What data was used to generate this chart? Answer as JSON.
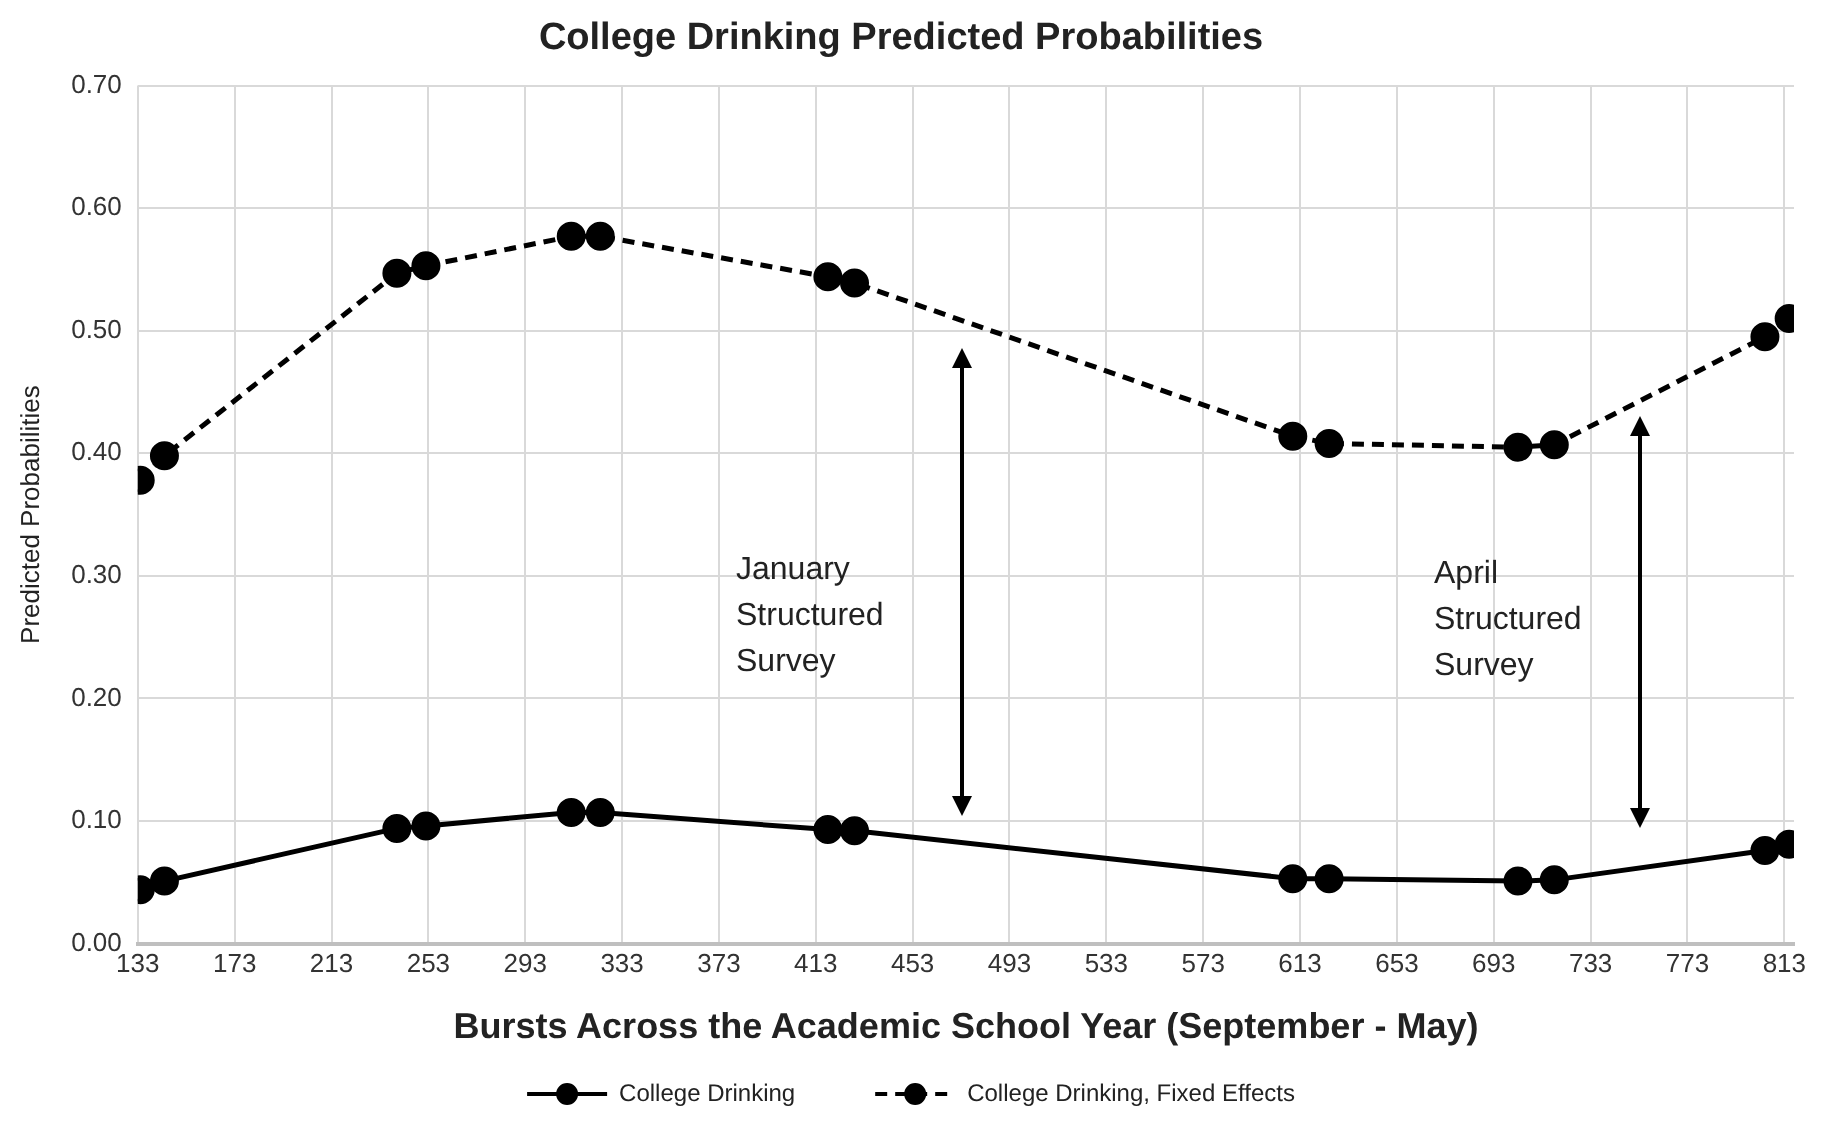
{
  "chart_data": {
    "type": "line",
    "title": "College Drinking Predicted Probabilities",
    "xlabel": "Bursts Across the Academic School Year (September - May)",
    "ylabel": "Predicted Probabilities",
    "xlim": [
      133,
      817
    ],
    "xticks": [
      133,
      173,
      213,
      253,
      293,
      333,
      373,
      413,
      453,
      493,
      533,
      573,
      613,
      653,
      693,
      733,
      773,
      813
    ],
    "ylim": [
      0,
      0.7
    ],
    "yticks": [
      {
        "value": 0,
        "label": "0.00"
      },
      {
        "value": 0.1,
        "label": "0.10"
      },
      {
        "value": 0.2,
        "label": "0.20"
      },
      {
        "value": 0.3,
        "label": "0.30"
      },
      {
        "value": 0.4,
        "label": "0.40"
      },
      {
        "value": 0.5,
        "label": "0.50"
      },
      {
        "value": 0.6,
        "label": "0.60"
      },
      {
        "value": 0.7,
        "label": "0.70"
      }
    ],
    "grid": true,
    "legend": "bottom",
    "marker": "circle",
    "series": [
      {
        "name": "College Drinking",
        "color": "#000000",
        "line_style": "solid",
        "x": [
          134,
          144,
          240,
          252,
          312,
          324,
          418,
          429,
          610,
          625,
          703,
          718,
          805,
          815
        ],
        "values": [
          0.044,
          0.051,
          0.094,
          0.096,
          0.107,
          0.107,
          0.093,
          0.092,
          0.053,
          0.053,
          0.051,
          0.052,
          0.076,
          0.081
        ]
      },
      {
        "name": "College Drinking, Fixed Effects",
        "color": "#000000",
        "line_style": "dashed",
        "x": [
          134,
          144,
          240,
          252,
          312,
          324,
          418,
          429,
          610,
          625,
          703,
          718,
          805,
          815
        ],
        "values": [
          0.378,
          0.398,
          0.547,
          0.553,
          0.577,
          0.577,
          0.544,
          0.539,
          0.414,
          0.408,
          0.405,
          0.407,
          0.495,
          0.51
        ]
      }
    ],
    "annotations": [
      "January\nStructured\nSurvey",
      "April\nStructured\nSurvey"
    ]
  }
}
